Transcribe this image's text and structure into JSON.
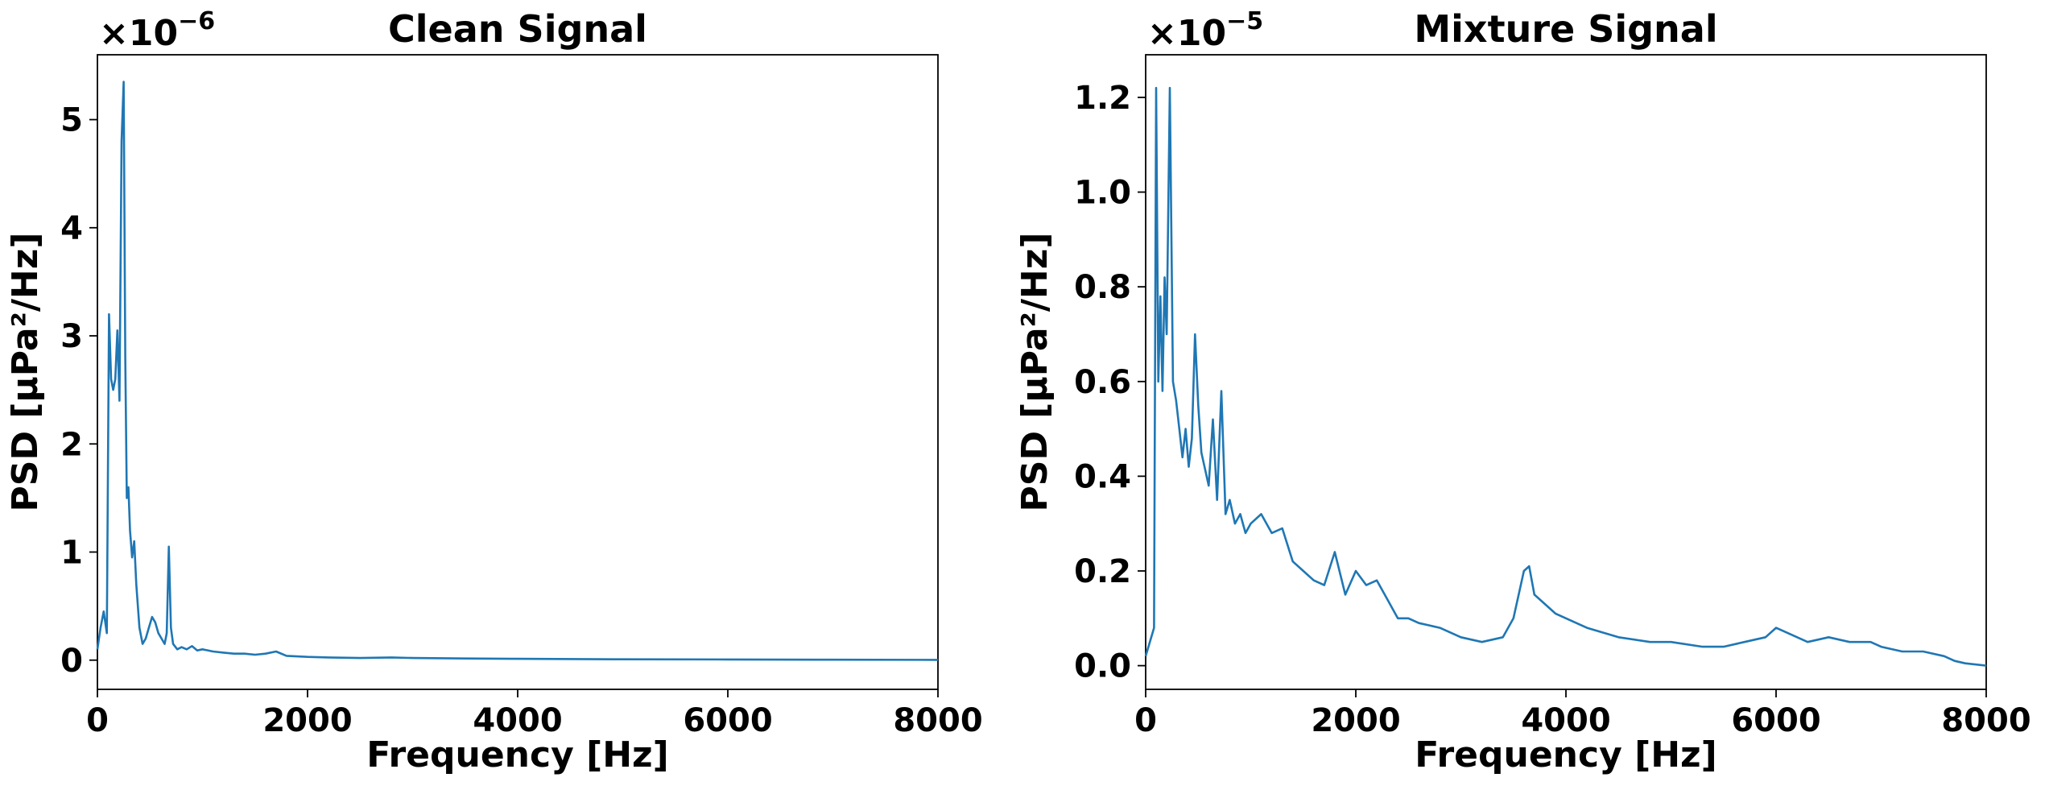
{
  "chart_data": [
    {
      "type": "line",
      "title": "Clean Signal",
      "xlabel": "Frequency [Hz]",
      "ylabel": "PSD [µPa²/Hz]",
      "y_offset": "×10",
      "y_offset_exp": "−6",
      "xlim": [
        0,
        8000
      ],
      "ylim": [
        -0.27,
        5.6
      ],
      "grid": false,
      "xticks": [
        0,
        2000,
        4000,
        6000,
        8000
      ],
      "xtick_labels": [
        "0",
        "2000",
        "4000",
        "6000",
        "8000"
      ],
      "yticks": [
        0,
        1,
        2,
        3,
        4,
        5
      ],
      "ytick_labels": [
        "0",
        "1",
        "2",
        "3",
        "4",
        "5"
      ],
      "color": "#1f77b4",
      "x": [
        0,
        30,
        60,
        90,
        110,
        130,
        150,
        170,
        190,
        210,
        230,
        250,
        265,
        280,
        295,
        310,
        330,
        350,
        370,
        400,
        430,
        460,
        490,
        520,
        550,
        580,
        610,
        640,
        660,
        680,
        700,
        720,
        760,
        800,
        850,
        900,
        950,
        1000,
        1100,
        1200,
        1300,
        1400,
        1500,
        1600,
        1700,
        1800,
        2000,
        2200,
        2500,
        2800,
        3000,
        3500,
        4000,
        5000,
        6000,
        7000,
        8000
      ],
      "y": [
        0.1,
        0.3,
        0.45,
        0.25,
        3.2,
        2.6,
        2.5,
        2.6,
        3.05,
        2.4,
        4.8,
        5.35,
        2.8,
        1.5,
        1.6,
        1.2,
        0.95,
        1.1,
        0.7,
        0.3,
        0.15,
        0.2,
        0.3,
        0.4,
        0.35,
        0.25,
        0.2,
        0.15,
        0.25,
        1.05,
        0.3,
        0.15,
        0.1,
        0.12,
        0.1,
        0.13,
        0.09,
        0.1,
        0.08,
        0.07,
        0.06,
        0.06,
        0.05,
        0.06,
        0.08,
        0.04,
        0.03,
        0.025,
        0.02,
        0.025,
        0.02,
        0.015,
        0.012,
        0.008,
        0.006,
        0.004,
        0.003
      ]
    },
    {
      "type": "line",
      "title": "Mixture Signal",
      "xlabel": "Frequency [Hz]",
      "ylabel": "PSD [µPa²/Hz]",
      "y_offset": "×10",
      "y_offset_exp": "−5",
      "xlim": [
        0,
        8000
      ],
      "ylim": [
        -0.05,
        1.29
      ],
      "grid": false,
      "xticks": [
        0,
        2000,
        4000,
        6000,
        8000
      ],
      "xtick_labels": [
        "0",
        "2000",
        "4000",
        "6000",
        "8000"
      ],
      "yticks": [
        0.0,
        0.2,
        0.4,
        0.6,
        0.8,
        1.0,
        1.2
      ],
      "ytick_labels": [
        "0.0",
        "0.2",
        "0.4",
        "0.6",
        "0.8",
        "1.0",
        "1.2"
      ],
      "color": "#1f77b4",
      "x": [
        0,
        40,
        80,
        100,
        120,
        140,
        160,
        180,
        200,
        230,
        260,
        290,
        320,
        350,
        380,
        410,
        440,
        470,
        500,
        530,
        560,
        600,
        640,
        680,
        720,
        760,
        800,
        850,
        900,
        950,
        1000,
        1100,
        1200,
        1300,
        1400,
        1500,
        1600,
        1700,
        1800,
        1900,
        2000,
        2100,
        2200,
        2300,
        2400,
        2500,
        2600,
        2800,
        3000,
        3200,
        3400,
        3500,
        3600,
        3650,
        3700,
        3800,
        3900,
        4000,
        4200,
        4500,
        4800,
        5000,
        5300,
        5500,
        5700,
        5900,
        6000,
        6100,
        6300,
        6500,
        6700,
        6900,
        7000,
        7200,
        7400,
        7600,
        7700,
        7800,
        8000
      ],
      "y": [
        0.02,
        0.05,
        0.08,
        1.22,
        0.6,
        0.78,
        0.58,
        0.82,
        0.7,
        1.22,
        0.6,
        0.56,
        0.5,
        0.44,
        0.5,
        0.42,
        0.48,
        0.7,
        0.55,
        0.45,
        0.42,
        0.38,
        0.52,
        0.35,
        0.58,
        0.32,
        0.35,
        0.3,
        0.32,
        0.28,
        0.3,
        0.32,
        0.28,
        0.29,
        0.22,
        0.2,
        0.18,
        0.17,
        0.24,
        0.15,
        0.2,
        0.17,
        0.18,
        0.14,
        0.1,
        0.1,
        0.09,
        0.08,
        0.06,
        0.05,
        0.06,
        0.1,
        0.2,
        0.21,
        0.15,
        0.13,
        0.11,
        0.1,
        0.08,
        0.06,
        0.05,
        0.05,
        0.04,
        0.04,
        0.05,
        0.06,
        0.08,
        0.07,
        0.05,
        0.06,
        0.05,
        0.05,
        0.04,
        0.03,
        0.03,
        0.02,
        0.01,
        0.005,
        0.0
      ]
    }
  ]
}
